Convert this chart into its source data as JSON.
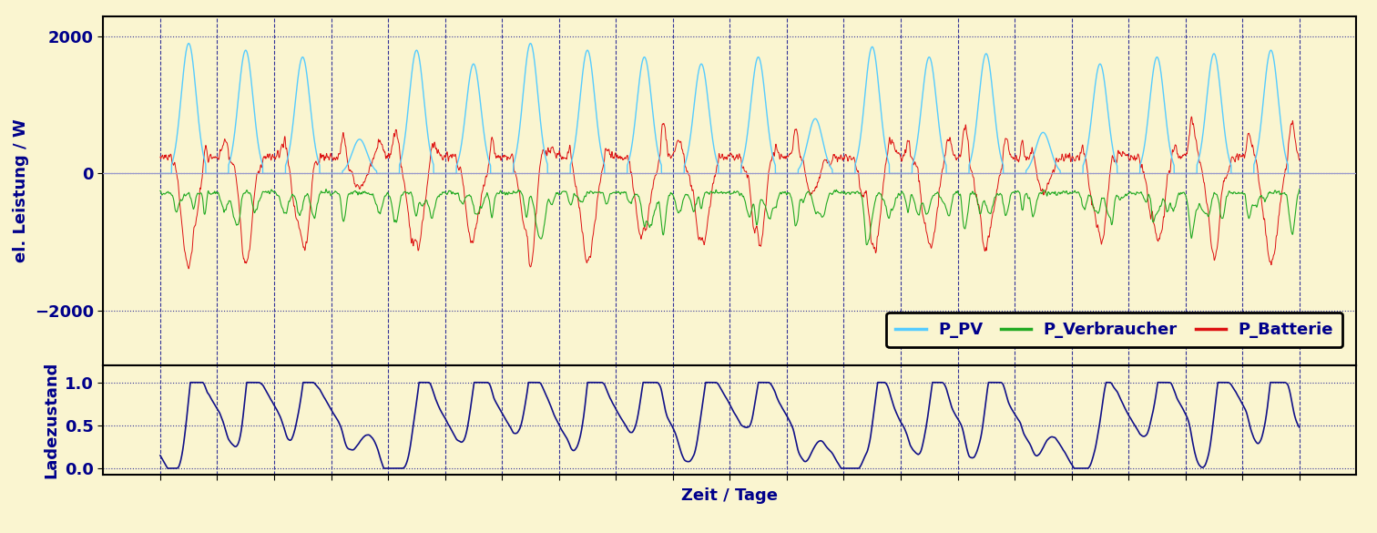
{
  "background_color": "#FAF5D0",
  "title_upper": "el. Leistung / W",
  "title_lower": "Ladezustand",
  "xlabel": "Zeit / Tage",
  "ylim_upper": [
    -2800,
    2300
  ],
  "yticks_upper": [
    -2000,
    0,
    2000
  ],
  "ylim_lower": [
    -0.07,
    1.2
  ],
  "yticks_lower": [
    0.0,
    0.5,
    1.0
  ],
  "n_days": 20,
  "colors": {
    "pv": "#55CCFF",
    "verbraucher": "#22AA22",
    "batterie": "#DD1111",
    "soc": "#111188",
    "zero_line": "#9999CC",
    "grid_dashed": "#333399",
    "grid_dotted": "#333399"
  },
  "legend_labels": [
    "P_PV",
    "P_Verbraucher",
    "P_Batterie"
  ],
  "font_color": "#00008B",
  "figsize": [
    15.12,
    5.85
  ],
  "dpi": 100
}
